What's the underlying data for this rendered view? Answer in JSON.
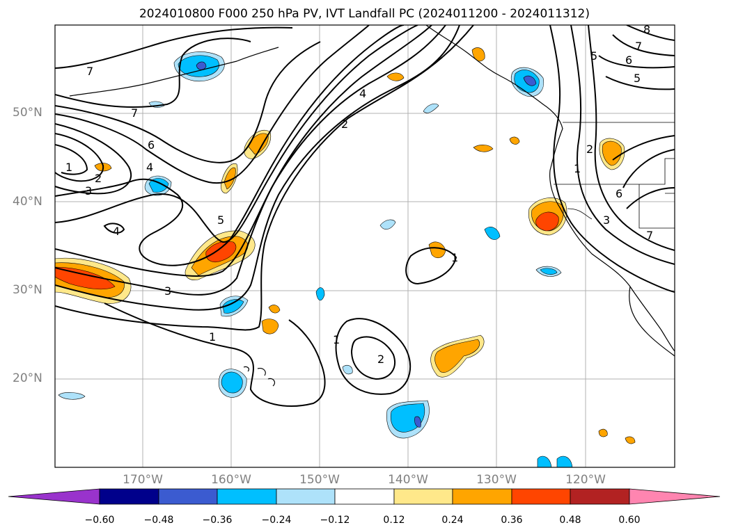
{
  "title": "2024010800 F000 250 hPa PV, IVT Landfall PC (2024011200 - 2024011312)",
  "map": {
    "lat_ticks": [
      "50°N",
      "40°N",
      "30°N",
      "20°N"
    ],
    "lon_ticks": [
      "170°W",
      "160°W",
      "150°W",
      "140°W",
      "130°W",
      "120°W"
    ],
    "gridlines": true
  },
  "contour_labels": [
    "7",
    "7",
    "6",
    "4",
    "1",
    "2",
    "3",
    "4",
    "5",
    "3",
    "1",
    "4",
    "2",
    "1",
    "2",
    "8",
    "7",
    "6",
    "5",
    "5",
    "2",
    "1",
    "6",
    "3",
    "7",
    "1"
  ],
  "colorbar": {
    "ticks": [
      "−0.60",
      "−0.48",
      "−0.36",
      "−0.24",
      "−0.12",
      "0.12",
      "0.24",
      "0.36",
      "0.48",
      "0.60"
    ],
    "colors": [
      "#9933cc",
      "#00008b",
      "#3b5bd0",
      "#00bfff",
      "#aee2fa",
      "#ffffff",
      "#ffe88a",
      "#ffa500",
      "#ff4500",
      "#b22222",
      "#ff85b0"
    ]
  }
}
